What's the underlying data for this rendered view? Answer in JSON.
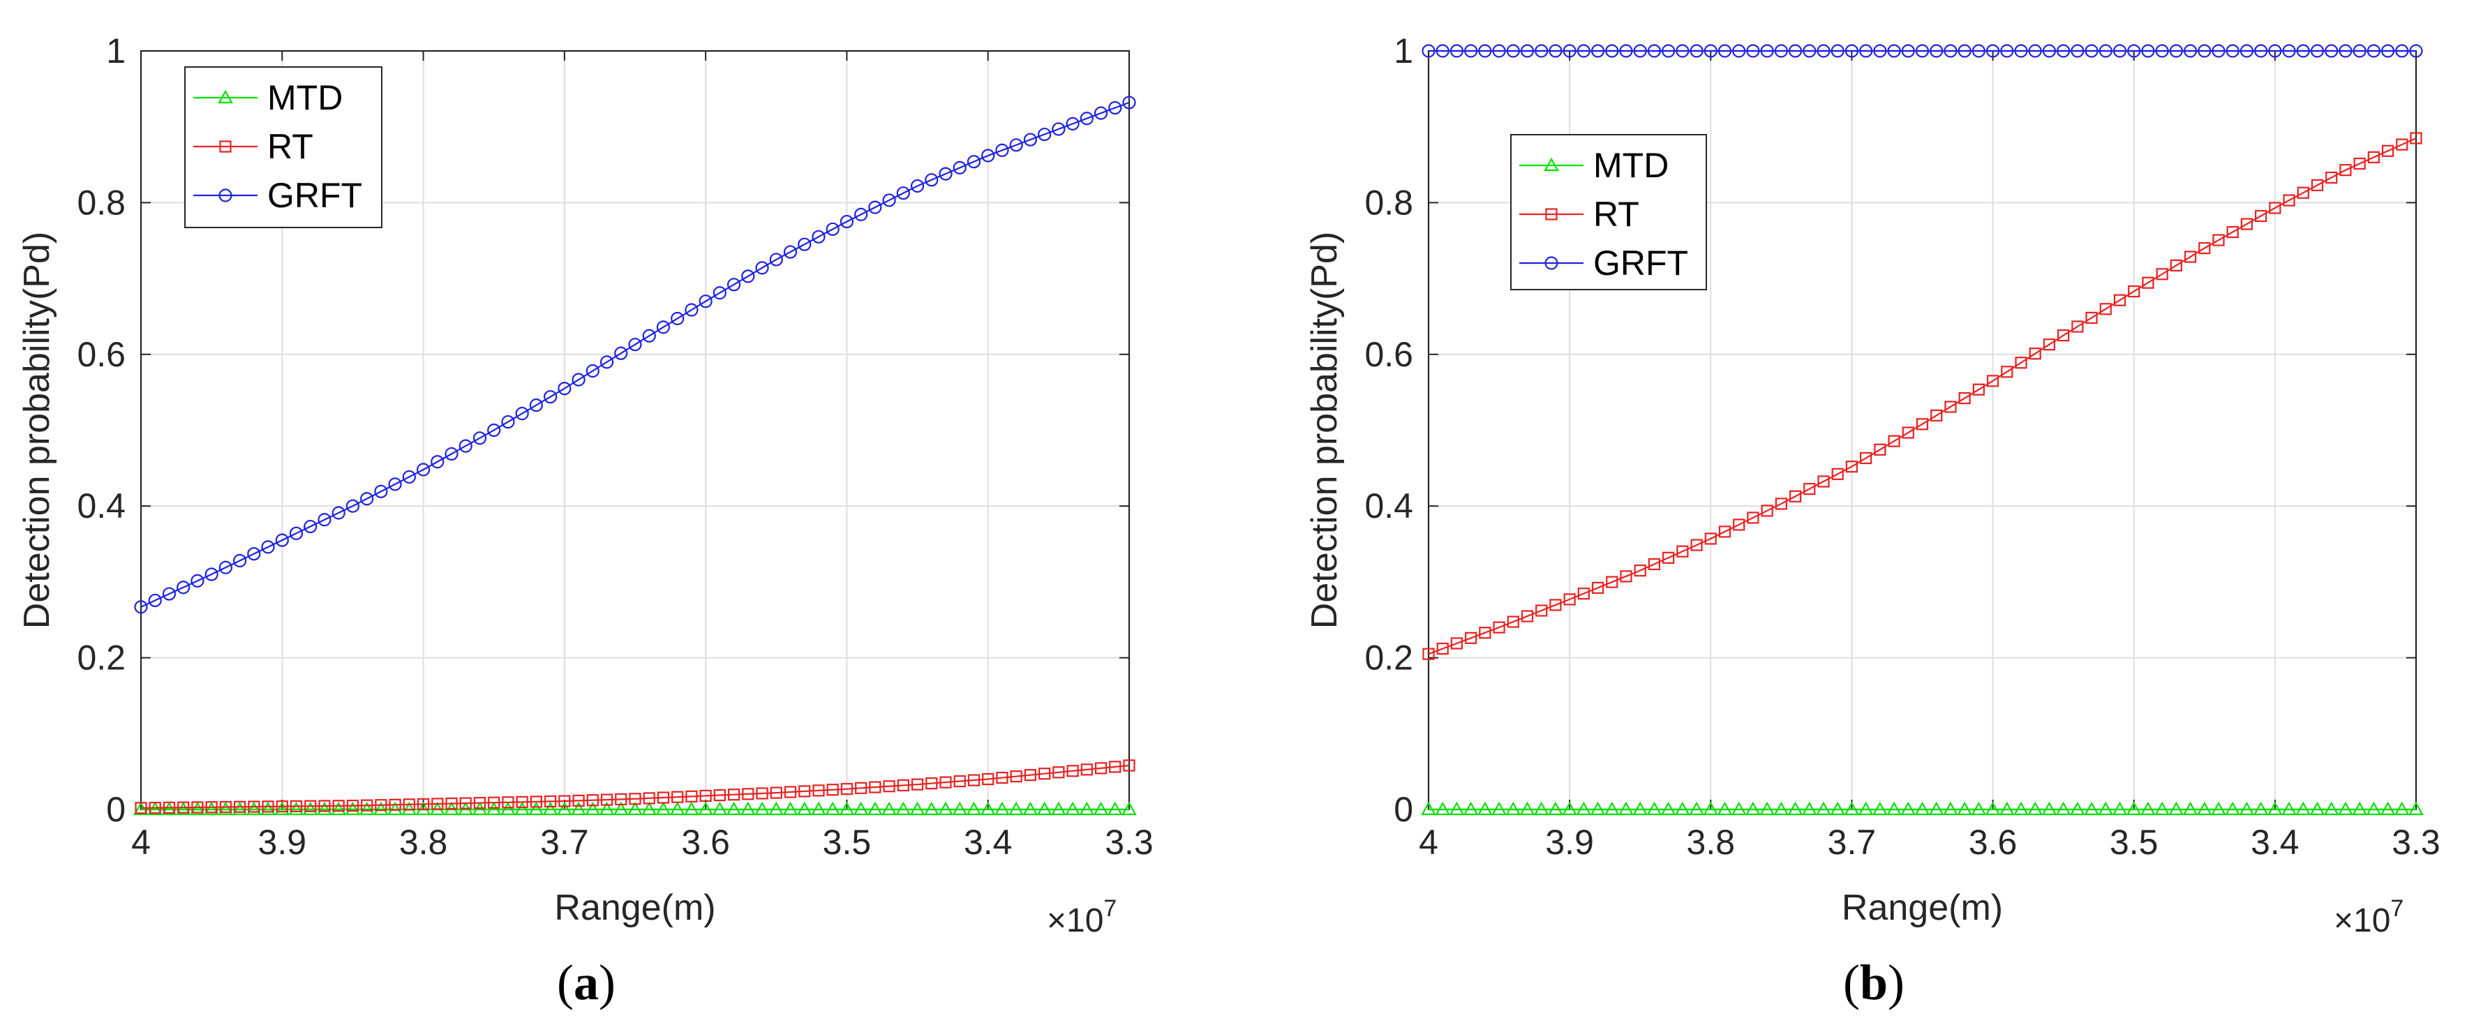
{
  "colors": {
    "MTD": "#00e000",
    "RT": "#e82222",
    "GRFT": "#1f22e0",
    "axis": "#262626",
    "grid": "#dedede"
  },
  "chart_data": [
    {
      "panel_label": "(a)",
      "label_letter": "a",
      "type": "line",
      "title": "",
      "xlabel": "Range(m)",
      "ylabel": "Detection probability(Pd)",
      "x_exponent_base": "×10",
      "x_exponent_power": "7",
      "xlim": [
        4.0,
        3.3
      ],
      "x_reversed": true,
      "ylim": [
        0,
        1
      ],
      "xticks": [
        4.0,
        3.9,
        3.8,
        3.7,
        3.6,
        3.5,
        3.4,
        3.3
      ],
      "xtick_labels": [
        "4",
        "3.9",
        "3.8",
        "3.7",
        "3.6",
        "3.5",
        "3.4",
        "3.3"
      ],
      "yticks": [
        0,
        0.2,
        0.4,
        0.6,
        0.8,
        1
      ],
      "ytick_labels": [
        "0",
        "0.2",
        "0.4",
        "0.6",
        "0.8",
        "1"
      ],
      "grid": true,
      "legend_position": "top-left",
      "x": [
        4.0,
        3.95,
        3.9,
        3.85,
        3.8,
        3.75,
        3.7,
        3.65,
        3.6,
        3.55,
        3.5,
        3.45,
        3.4,
        3.35,
        3.3
      ],
      "series": [
        {
          "name": "MTD",
          "marker": "triangle",
          "values": [
            0,
            0,
            0,
            0,
            0,
            0,
            0,
            0,
            0,
            0,
            0,
            0,
            0,
            0,
            0
          ]
        },
        {
          "name": "RT",
          "marker": "square",
          "values": [
            0.002,
            0.003,
            0.004,
            0.005,
            0.007,
            0.009,
            0.011,
            0.014,
            0.018,
            0.022,
            0.027,
            0.033,
            0.04,
            0.049,
            0.058
          ]
        },
        {
          "name": "GRFT",
          "marker": "circle",
          "values": [
            0.267,
            0.31,
            0.355,
            0.4,
            0.448,
            0.5,
            0.555,
            0.613,
            0.67,
            0.725,
            0.775,
            0.822,
            0.862,
            0.897,
            0.932
          ]
        }
      ]
    },
    {
      "panel_label": "(b)",
      "label_letter": "b",
      "type": "line",
      "title": "",
      "xlabel": "Range(m)",
      "ylabel": "Detection probability(Pd)",
      "x_exponent_base": "×10",
      "x_exponent_power": "7",
      "xlim": [
        4.0,
        3.3
      ],
      "x_reversed": true,
      "ylim": [
        0,
        1
      ],
      "xticks": [
        4.0,
        3.9,
        3.8,
        3.7,
        3.6,
        3.5,
        3.4,
        3.3
      ],
      "xtick_labels": [
        "4",
        "3.9",
        "3.8",
        "3.7",
        "3.6",
        "3.5",
        "3.4",
        "3.3"
      ],
      "yticks": [
        0,
        0.2,
        0.4,
        0.6,
        0.8,
        1
      ],
      "ytick_labels": [
        "0",
        "0.2",
        "0.4",
        "0.6",
        "0.8",
        "1"
      ],
      "grid": true,
      "legend_position": "upper-left (inset)",
      "x": [
        4.0,
        3.95,
        3.9,
        3.85,
        3.8,
        3.75,
        3.7,
        3.65,
        3.6,
        3.55,
        3.5,
        3.45,
        3.4,
        3.35,
        3.3
      ],
      "series": [
        {
          "name": "MTD",
          "marker": "triangle",
          "values": [
            0,
            0,
            0,
            0,
            0,
            0,
            0,
            0,
            0,
            0,
            0,
            0,
            0,
            0,
            0
          ]
        },
        {
          "name": "RT",
          "marker": "square",
          "values": [
            0.205,
            0.24,
            0.277,
            0.315,
            0.357,
            0.403,
            0.452,
            0.508,
            0.565,
            0.625,
            0.683,
            0.74,
            0.793,
            0.843,
            0.885
          ]
        },
        {
          "name": "GRFT",
          "marker": "circle",
          "values": [
            1,
            1,
            1,
            1,
            1,
            1,
            1,
            1,
            1,
            1,
            1,
            1,
            1,
            1,
            1
          ]
        }
      ]
    }
  ]
}
